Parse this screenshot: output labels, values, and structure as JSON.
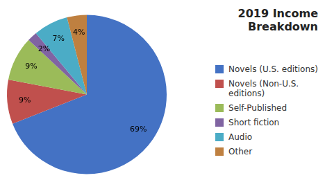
{
  "chart_data": {
    "type": "pie",
    "title": "2019 Income Breakdown",
    "categories": [
      "Novels (U.S. editions)",
      "Novels (Non-U.S.\neditions)",
      "Self-Published",
      "Short fiction",
      "Audio",
      "Other"
    ],
    "values": [
      69,
      9,
      9,
      2,
      7,
      4
    ],
    "value_labels": [
      "69%",
      "9%",
      "9%",
      "2%",
      "7%",
      "4%"
    ],
    "colors": [
      "#4472c4",
      "#c0504d",
      "#9bbb59",
      "#8064a2",
      "#4bacc6",
      "#bf8040"
    ],
    "data_labels": true,
    "legend": "right"
  }
}
